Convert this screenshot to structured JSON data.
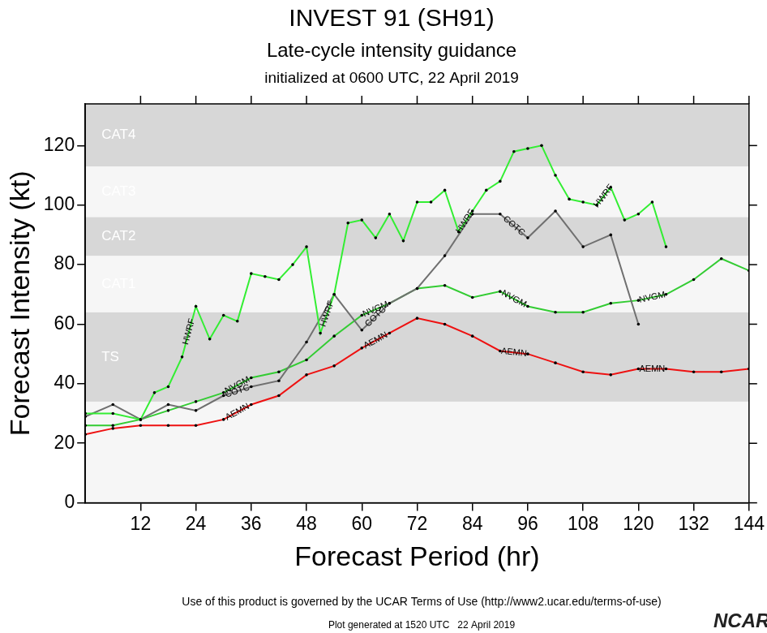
{
  "chart_data": {
    "type": "line",
    "title": "INVEST 91 (SH91)",
    "subtitle": [
      "Late-cycle intensity guidance",
      "initialized at 0600 UTC, 22 April 2019"
    ],
    "xlabel": "Forecast Period (hr)",
    "ylabel": "Forecast Intensity (kt)",
    "notes": [
      "Use of this product is governed by the UCAR Terms of Use (http://www2.ucar.edu/terms-of-use)",
      "Plot generated at 1520 UTC   22 April 2019"
    ],
    "logo": "NCAR",
    "xlim": [
      0,
      144
    ],
    "xticks": [
      12,
      24,
      36,
      48,
      60,
      72,
      84,
      96,
      108,
      120,
      132,
      144
    ],
    "ylim": [
      0,
      134
    ],
    "yticks": [
      0,
      20,
      40,
      60,
      80,
      100,
      120
    ],
    "grid": false,
    "annotations": [
      {
        "label": "TS",
        "from": 34,
        "to": 64
      },
      {
        "label": "CAT1",
        "from": 64,
        "to": 83
      },
      {
        "label": "CAT2",
        "from": 83,
        "to": 96
      },
      {
        "label": "CAT3",
        "from": 96,
        "to": 113
      },
      {
        "label": "CAT4",
        "from": 113,
        "to": 134
      }
    ],
    "series": [
      {
        "name": "HWRF",
        "color": "#33ee33",
        "marker": "circle",
        "line_style": "solid",
        "x": [
          0,
          6,
          12,
          15,
          18,
          21,
          24,
          27,
          30,
          33,
          36,
          39,
          42,
          45,
          48,
          51,
          54,
          57,
          60,
          63,
          66,
          69,
          72,
          75,
          78,
          81,
          84,
          87,
          90,
          93,
          96,
          99,
          102,
          105,
          108,
          111,
          114,
          117,
          120,
          123,
          126
        ],
        "values": [
          30,
          30,
          28,
          37,
          39,
          49,
          66,
          55,
          63,
          61,
          77,
          76,
          75,
          80,
          86,
          57,
          70,
          94,
          95,
          89,
          97,
          88,
          101,
          101,
          105,
          91,
          98,
          105,
          108,
          118,
          119,
          120,
          110,
          102,
          101,
          100,
          106,
          95,
          97,
          101,
          86
        ]
      },
      {
        "name": "COTC",
        "color": "#707070",
        "marker": "circle",
        "line_style": "solid",
        "x": [
          0,
          6,
          12,
          18,
          24,
          30,
          36,
          42,
          48,
          54,
          60,
          66,
          72,
          78,
          84,
          90,
          96,
          102,
          108,
          114,
          120
        ],
        "values": [
          29,
          33,
          28,
          33,
          31,
          36,
          39,
          41,
          54,
          70,
          58,
          67,
          72,
          83,
          97,
          97,
          89,
          98,
          86,
          90,
          60
        ]
      },
      {
        "name": "NVGM",
        "color": "#33cc33",
        "marker": "circle",
        "line_style": "solid",
        "x": [
          0,
          6,
          12,
          18,
          24,
          30,
          36,
          42,
          48,
          54,
          60,
          66,
          72,
          78,
          84,
          90,
          96,
          102,
          108,
          114,
          120,
          126,
          132,
          138,
          144
        ],
        "values": [
          26,
          26,
          28,
          31,
          34,
          37,
          42,
          44,
          48,
          56,
          63,
          67,
          72,
          73,
          69,
          71,
          66,
          64,
          64,
          67,
          68,
          70,
          75,
          82,
          78
        ]
      },
      {
        "name": "AEMN",
        "color": "#ee1111",
        "marker": "circle",
        "line_style": "solid",
        "x": [
          0,
          6,
          12,
          18,
          24,
          30,
          36,
          42,
          48,
          54,
          60,
          66,
          72,
          78,
          84,
          90,
          96,
          102,
          108,
          114,
          120,
          126,
          132,
          138,
          144
        ],
        "values": [
          23,
          25,
          26,
          26,
          26,
          28,
          33,
          36,
          43,
          46,
          52,
          57,
          62,
          60,
          56,
          51,
          50,
          47,
          44,
          43,
          45,
          45,
          44,
          44,
          45
        ]
      }
    ]
  }
}
